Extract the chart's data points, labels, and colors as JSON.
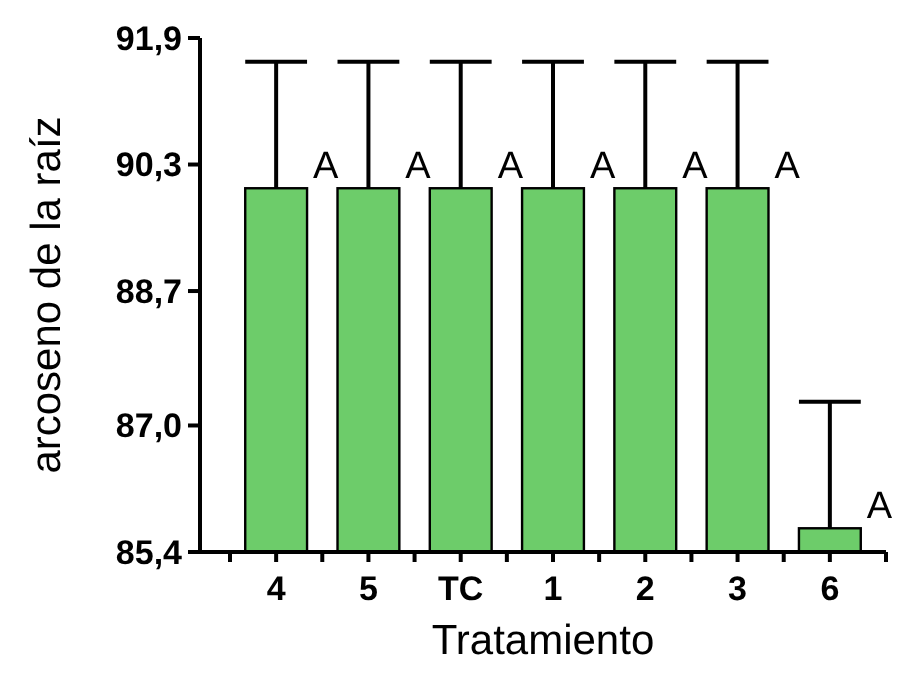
{
  "chart_data": {
    "type": "bar",
    "xlabel": "Tratamiento",
    "ylabel": "arcoseno de la raíz",
    "categories": [
      "4",
      "5",
      "TC",
      "1",
      "2",
      "3",
      "6"
    ],
    "values": [
      90.0,
      90.0,
      90.0,
      90.0,
      90.0,
      90.0,
      85.7
    ],
    "errors": [
      [
        90.0,
        91.6
      ],
      [
        90.0,
        91.6
      ],
      [
        90.0,
        91.6
      ],
      [
        90.0,
        91.6
      ],
      [
        90.0,
        91.6
      ],
      [
        90.0,
        91.6
      ],
      [
        85.7,
        87.3
      ]
    ],
    "color": "#6dcc6a",
    "ylim": [
      85.4,
      91.9
    ],
    "yticks": [
      {
        "value": 85.4,
        "label": "85,4"
      },
      {
        "value": 87.0,
        "label": "87,0"
      },
      {
        "value": 88.7,
        "label": "88,7"
      },
      {
        "value": 90.3,
        "label": "90,3"
      },
      {
        "value": 91.9,
        "label": "91,9"
      }
    ],
    "annotations": [
      {
        "text": "A",
        "x": "4",
        "y": 90.3
      },
      {
        "text": "A",
        "x": "5",
        "y": 90.3
      },
      {
        "text": "A",
        "x": "TC",
        "y": 90.3
      },
      {
        "text": "A",
        "x": "1",
        "y": 90.3
      },
      {
        "text": "A",
        "x": "2",
        "y": 90.3
      },
      {
        "text": "A",
        "x": "3",
        "y": 90.3
      },
      {
        "text": "A",
        "x": "6",
        "y": 86.0
      }
    ],
    "grid": false
  }
}
